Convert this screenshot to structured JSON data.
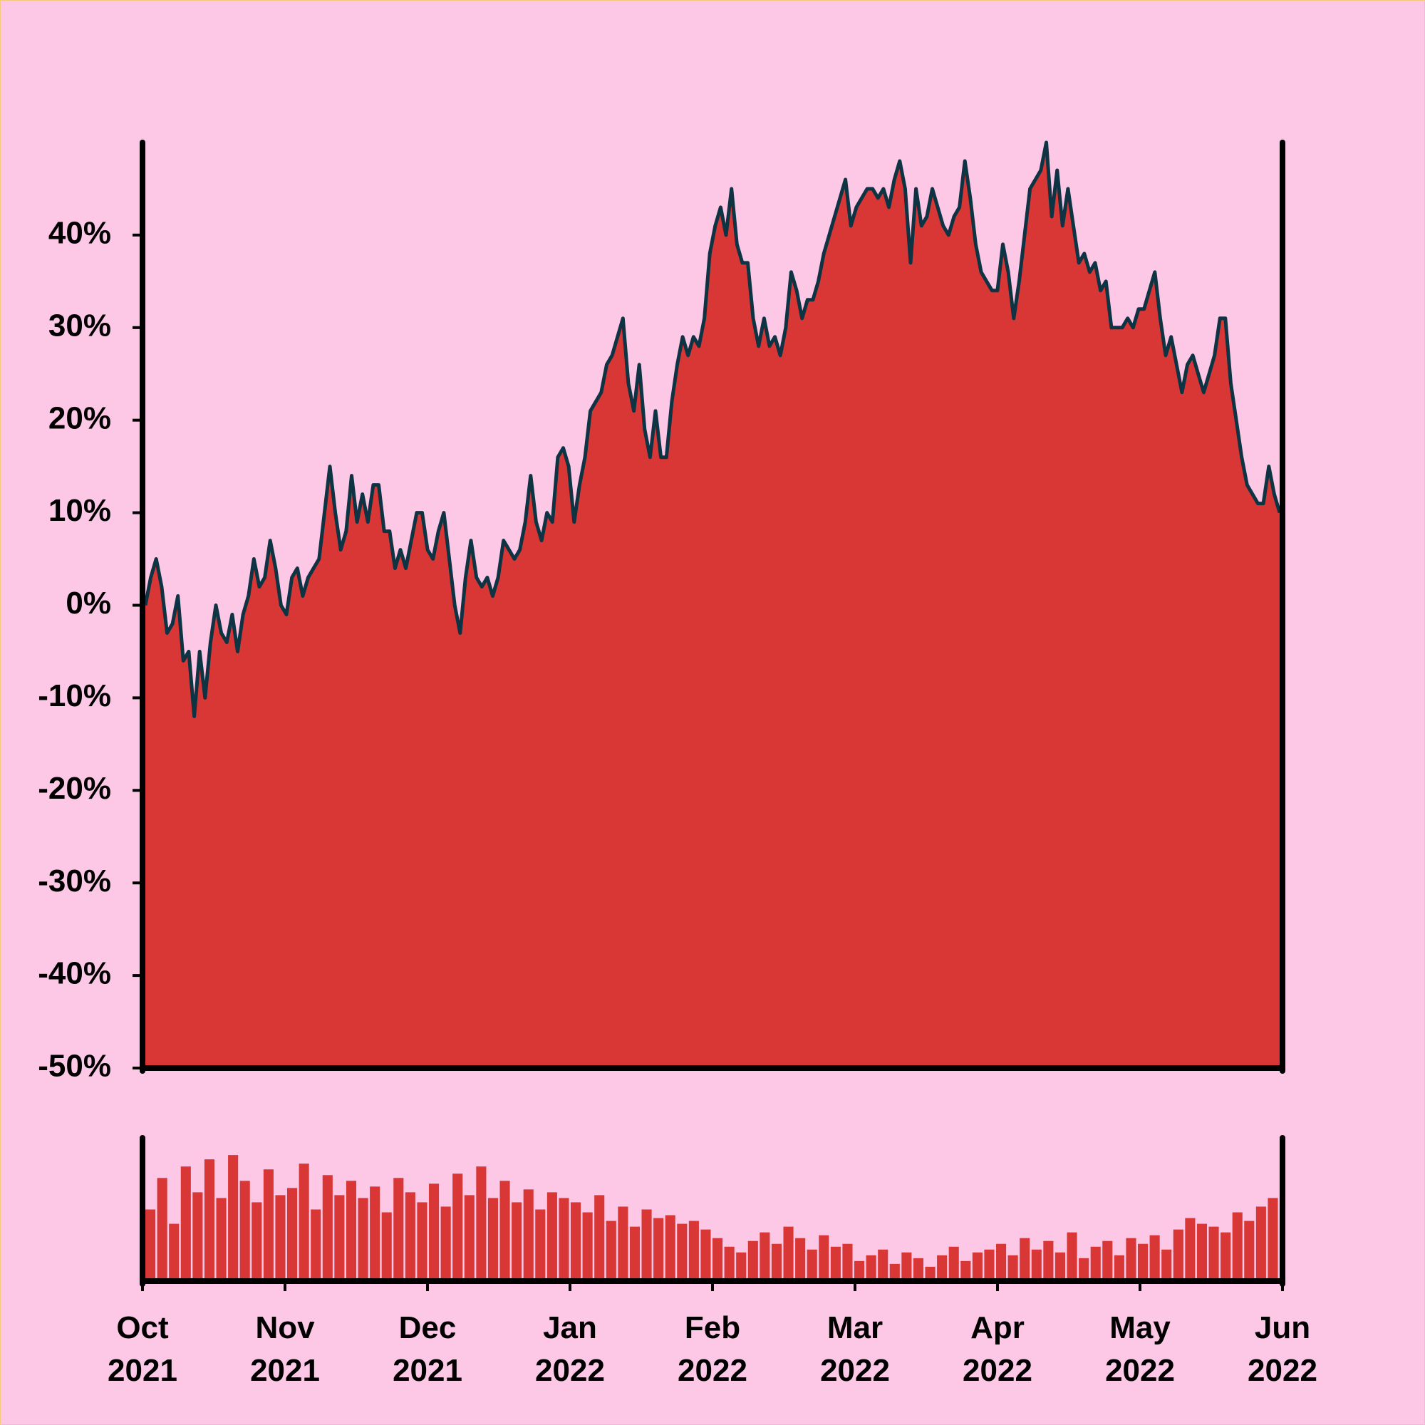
{
  "chart_data": [
    {
      "type": "area",
      "color": "#d93636",
      "line_color": "#0e3444",
      "ylim": [
        -50,
        50
      ],
      "yticks": [
        {
          "value": -50,
          "label": "-50%"
        },
        {
          "value": -40,
          "label": "-40%"
        },
        {
          "value": -30,
          "label": "-30%"
        },
        {
          "value": -20,
          "label": "-20%"
        },
        {
          "value": -10,
          "label": "-10%"
        },
        {
          "value": 0,
          "label": "0%"
        },
        {
          "value": 10,
          "label": "10%"
        },
        {
          "value": 20,
          "label": "20%"
        },
        {
          "value": 30,
          "label": "30%"
        },
        {
          "value": 40,
          "label": "40%"
        }
      ],
      "xticks": [
        "Oct 2021",
        "Nov 2021",
        "Dec 2021",
        "Jan 2022",
        "Feb 2022",
        "Mar 2022",
        "Apr 2022",
        "May 2022",
        "Jun 2022"
      ],
      "values": [
        0,
        3,
        5,
        2,
        -3,
        -2,
        1,
        -6,
        -5,
        -12,
        -5,
        -10,
        -4,
        0,
        -3,
        -4,
        -1,
        -5,
        -1,
        1,
        5,
        2,
        3,
        7,
        4,
        0,
        -1,
        3,
        4,
        1,
        3,
        4,
        5,
        10,
        15,
        10,
        6,
        8,
        14,
        9,
        12,
        9,
        13,
        13,
        8,
        8,
        4,
        6,
        4,
        7,
        10,
        10,
        6,
        5,
        8,
        10,
        5,
        0,
        -3,
        3,
        7,
        3,
        2,
        3,
        1,
        3,
        7,
        6,
        5,
        6,
        9,
        14,
        9,
        7,
        10,
        9,
        16,
        17,
        15,
        9,
        13,
        16,
        21,
        22,
        23,
        26,
        27,
        29,
        31,
        24,
        21,
        26,
        19,
        16,
        21,
        16,
        16,
        22,
        26,
        29,
        27,
        29,
        28,
        31,
        38,
        41,
        43,
        40,
        45,
        39,
        37,
        37,
        31,
        28,
        31,
        28,
        29,
        27,
        30,
        36,
        34,
        31,
        33,
        33,
        35,
        38,
        40,
        42,
        44,
        46,
        41,
        43,
        44,
        45,
        45,
        44,
        45,
        43,
        46,
        48,
        45,
        37,
        45,
        41,
        42,
        45,
        43,
        41,
        40,
        42,
        43,
        48,
        44,
        39,
        36,
        35,
        34,
        34,
        39,
        36,
        31,
        35,
        40,
        45,
        46,
        47,
        50,
        42,
        47,
        41,
        45,
        41,
        37,
        38,
        36,
        37,
        34,
        35,
        30,
        30,
        30,
        31,
        30,
        32,
        32,
        34,
        36,
        31,
        27,
        29,
        26,
        23,
        26,
        27,
        25,
        23,
        25,
        27,
        31,
        31,
        24,
        20,
        16,
        13,
        12,
        11,
        11,
        15,
        12,
        10
      ]
    },
    {
      "type": "bar",
      "color": "#d93636",
      "ylim": [
        0,
        100
      ],
      "values": [
        50,
        72,
        40,
        80,
        62,
        85,
        58,
        88,
        70,
        55,
        78,
        60,
        65,
        82,
        50,
        74,
        60,
        70,
        58,
        66,
        48,
        72,
        62,
        55,
        68,
        52,
        75,
        60,
        80,
        58,
        70,
        55,
        64,
        50,
        62,
        58,
        55,
        48,
        60,
        42,
        52,
        38,
        50,
        44,
        46,
        40,
        42,
        36,
        30,
        24,
        20,
        28,
        34,
        26,
        38,
        30,
        22,
        32,
        24,
        26,
        14,
        18,
        22,
        12,
        20,
        16,
        10,
        18,
        24,
        14,
        20,
        22,
        26,
        18,
        30,
        22,
        28,
        20,
        34,
        16,
        24,
        28,
        18,
        30,
        26,
        32,
        22,
        36,
        44,
        40,
        38,
        34,
        48,
        42,
        52,
        58
      ]
    }
  ]
}
